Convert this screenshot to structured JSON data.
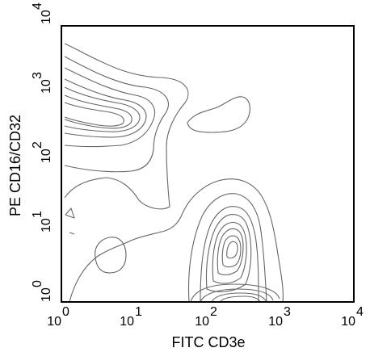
{
  "chart_data": {
    "type": "contour",
    "xlabel": "FITC CD3e",
    "ylabel": "PE CD16/CD32",
    "xscale": "log",
    "yscale": "log",
    "xlim": [
      1,
      10000
    ],
    "ylim": [
      1,
      10000
    ],
    "x_ticks": [
      {
        "value": 1,
        "base": "10",
        "exp": "0"
      },
      {
        "value": 10,
        "base": "10",
        "exp": "1"
      },
      {
        "value": 100,
        "base": "10",
        "exp": "2"
      },
      {
        "value": 1000,
        "base": "10",
        "exp": "3"
      },
      {
        "value": 10000,
        "base": "10",
        "exp": "4"
      }
    ],
    "y_ticks": [
      {
        "value": 1,
        "base": "10",
        "exp": "0"
      },
      {
        "value": 10,
        "base": "10",
        "exp": "1"
      },
      {
        "value": 100,
        "base": "10",
        "exp": "2"
      },
      {
        "value": 1000,
        "base": "10",
        "exp": "3"
      },
      {
        "value": 10000,
        "base": "10",
        "exp": "4"
      }
    ],
    "grid": false,
    "line_color": "#666666",
    "populations": [
      {
        "center_x": 5,
        "center_y": 400,
        "levels": 7
      },
      {
        "center_x": 220,
        "center_y": 7,
        "levels": 8
      },
      {
        "center_x": 400,
        "center_y": 1.1,
        "levels": 5
      },
      {
        "center_x": 220,
        "center_y": 800,
        "levels": 1
      },
      {
        "center_x": 4,
        "center_y": 5,
        "levels": 1
      },
      {
        "center_x": 2,
        "center_y": 18,
        "levels": 1
      }
    ]
  }
}
